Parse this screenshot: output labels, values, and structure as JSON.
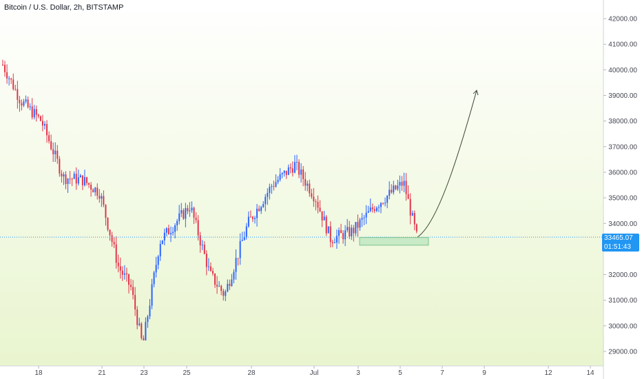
{
  "header": {
    "symbol_title": "Bitcoin / U.S. Dollar, 2h, BITSTAMP"
  },
  "price_badge": {
    "last_price": "33465.07",
    "countdown": "01:51:43"
  },
  "colors": {
    "up_candle": "#2962ff",
    "down_candle": "#e0344b",
    "background_bottom": "#e9f5cf",
    "price_line": "#2196f3",
    "zone_fill": "#a8dfb0",
    "zone_border": "#7cc48a",
    "projection_arrow": "#3e4a38"
  },
  "chart_data": {
    "type": "candlestick",
    "title": "Bitcoin / U.S. Dollar, 2h, BITSTAMP",
    "y_axis": {
      "ticks": [
        29000,
        30000,
        31000,
        32000,
        33000,
        34000,
        35000,
        36000,
        37000,
        38000,
        39000,
        40000,
        41000,
        42000
      ],
      "tick_labels": [
        "29000.00",
        "30000.00",
        "31000.00",
        "32000.00",
        "33000.00",
        "34000.00",
        "35000.00",
        "36000.00",
        "37000.00",
        "38000.00",
        "39000.00",
        "40000.00",
        "41000.00",
        "42000.00"
      ],
      "range": [
        28600,
        42500
      ],
      "position": "right"
    },
    "x_axis": {
      "tick_labels": [
        "18",
        "21",
        "23",
        "25",
        "28",
        "Jul",
        "3",
        "5",
        "7",
        "9",
        "12",
        "14"
      ]
    },
    "last_price": 33465.07,
    "price_path": {
      "description_points": [
        {
          "date": "Jun 16",
          "price": 40200
        },
        {
          "date": "Jun 17",
          "price": 38800
        },
        {
          "date": "Jun 18",
          "price": 38000
        },
        {
          "date": "Jun 19",
          "price": 35800
        },
        {
          "date": "Jun 20",
          "price": 35700
        },
        {
          "date": "Jun 21",
          "price": 35200
        },
        {
          "date": "Jun 22",
          "price": 32300
        },
        {
          "date": "Jun 22",
          "price": 31500
        },
        {
          "date": "Jun 23",
          "price": 29200
        },
        {
          "date": "Jun 24",
          "price": 33300
        },
        {
          "date": "Jun 25",
          "price": 34700
        },
        {
          "date": "Jun 26",
          "price": 32000
        },
        {
          "date": "Jun 27",
          "price": 31200
        },
        {
          "date": "Jun 28",
          "price": 34000
        },
        {
          "date": "Jun 29",
          "price": 35500
        },
        {
          "date": "Jun 30",
          "price": 36300
        },
        {
          "date": "Jul 1",
          "price": 35000
        },
        {
          "date": "Jul 2",
          "price": 33400
        },
        {
          "date": "Jul 3",
          "price": 33700
        },
        {
          "date": "Jul 4",
          "price": 34700
        },
        {
          "date": "Jul 5",
          "price": 35600
        },
        {
          "date": "Jul 6",
          "price": 33465
        }
      ]
    },
    "support_zone": {
      "from": "Jul 3",
      "to": "Jul 6",
      "price_low": 33150,
      "price_high": 33450
    },
    "projection": {
      "from_date": "Jul 6",
      "from_price": 33465,
      "to_date": "Jul 9",
      "to_price": 39200
    }
  }
}
